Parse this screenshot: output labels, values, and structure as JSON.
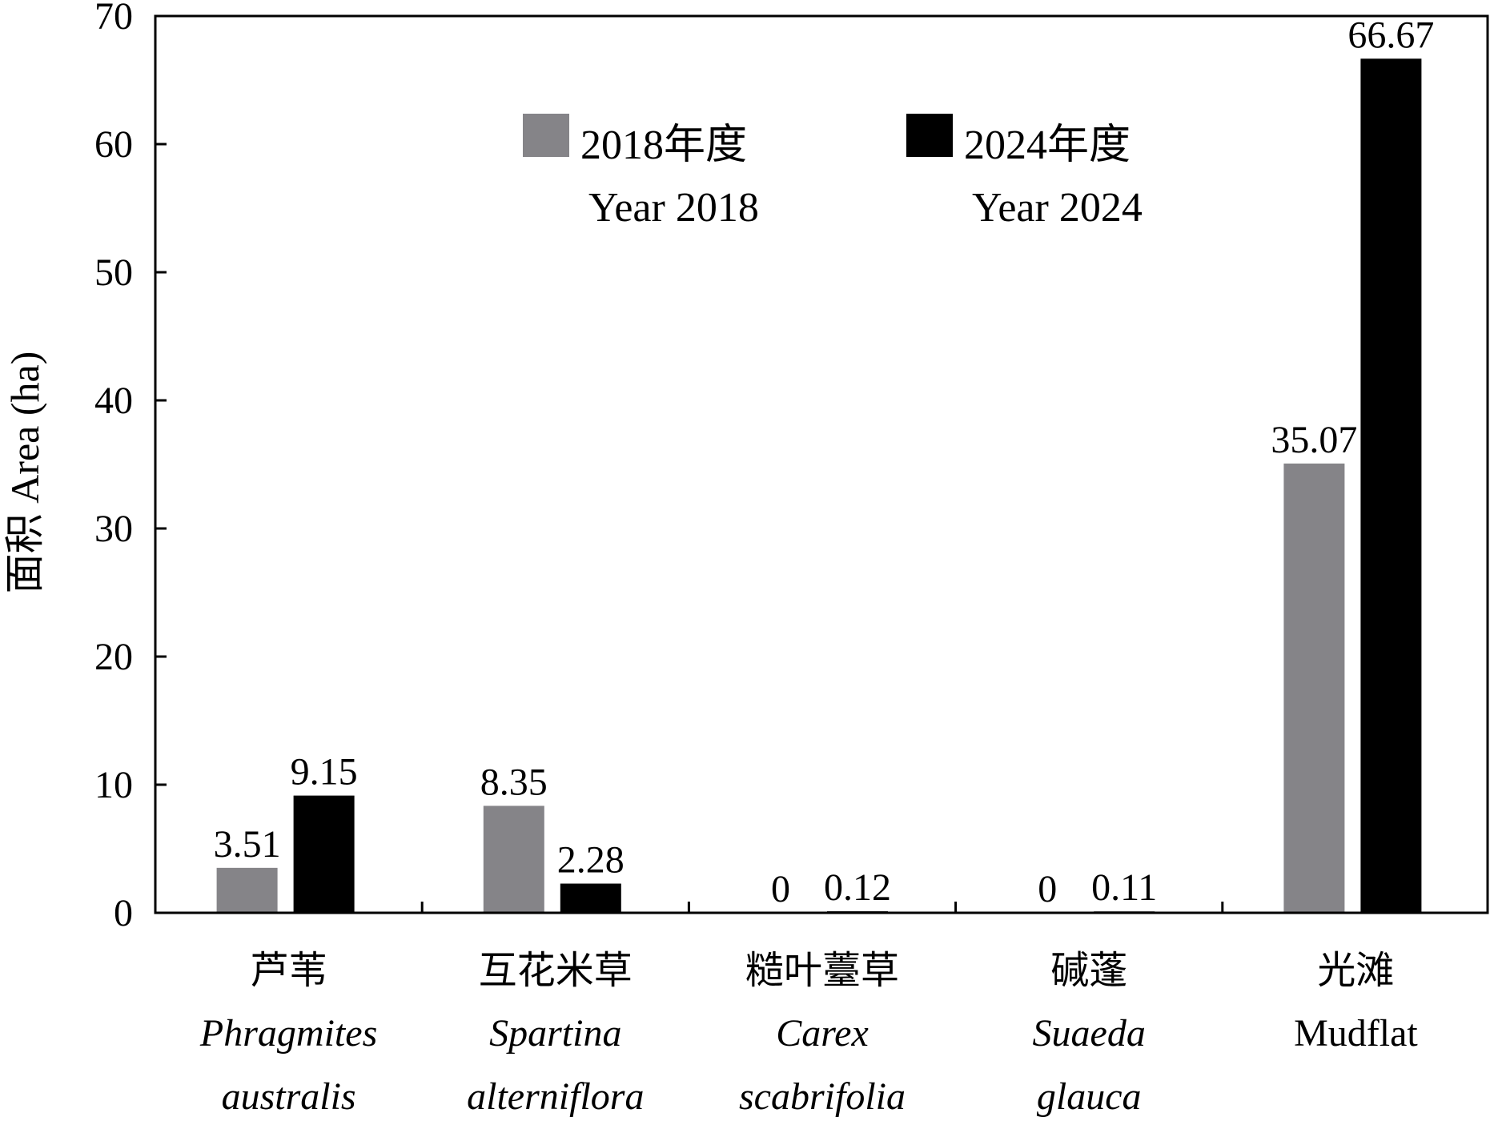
{
  "chart_data": {
    "type": "bar",
    "ylabel": "面积 Area (ha)",
    "ylim": [
      0,
      70
    ],
    "yticks": [
      0,
      10,
      20,
      30,
      40,
      50,
      60,
      70
    ],
    "categories": [
      {
        "zh": "芦苇",
        "latin1": "Phragmites",
        "latin2": "australis",
        "italic": true
      },
      {
        "zh": "互花米草",
        "latin1": "Spartina",
        "latin2": "alterniflora",
        "italic": true
      },
      {
        "zh": "糙叶薹草",
        "latin1": "Carex",
        "latin2": "scabrifolia",
        "italic": true
      },
      {
        "zh": "碱蓬",
        "latin1": "Suaeda",
        "latin2": "glauca",
        "italic": true
      },
      {
        "zh": "光滩",
        "latin1": "Mudflat",
        "latin2": "",
        "italic": false
      }
    ],
    "series": [
      {
        "name_zh": "2018年度",
        "name_en": "Year 2018",
        "color": "#858488",
        "values": [
          3.51,
          8.35,
          0,
          0,
          35.07
        ],
        "labels": [
          "3.51",
          "8.35",
          "0",
          "0",
          "35.07"
        ]
      },
      {
        "name_zh": "2024年度",
        "name_en": "Year 2024",
        "color": "#000000",
        "values": [
          9.15,
          2.28,
          0.12,
          0.11,
          66.67
        ],
        "labels": [
          "9.15",
          "2.28",
          "0.12",
          "0.11",
          "66.67"
        ]
      }
    ],
    "legend_position": "top-center",
    "grid": false
  }
}
